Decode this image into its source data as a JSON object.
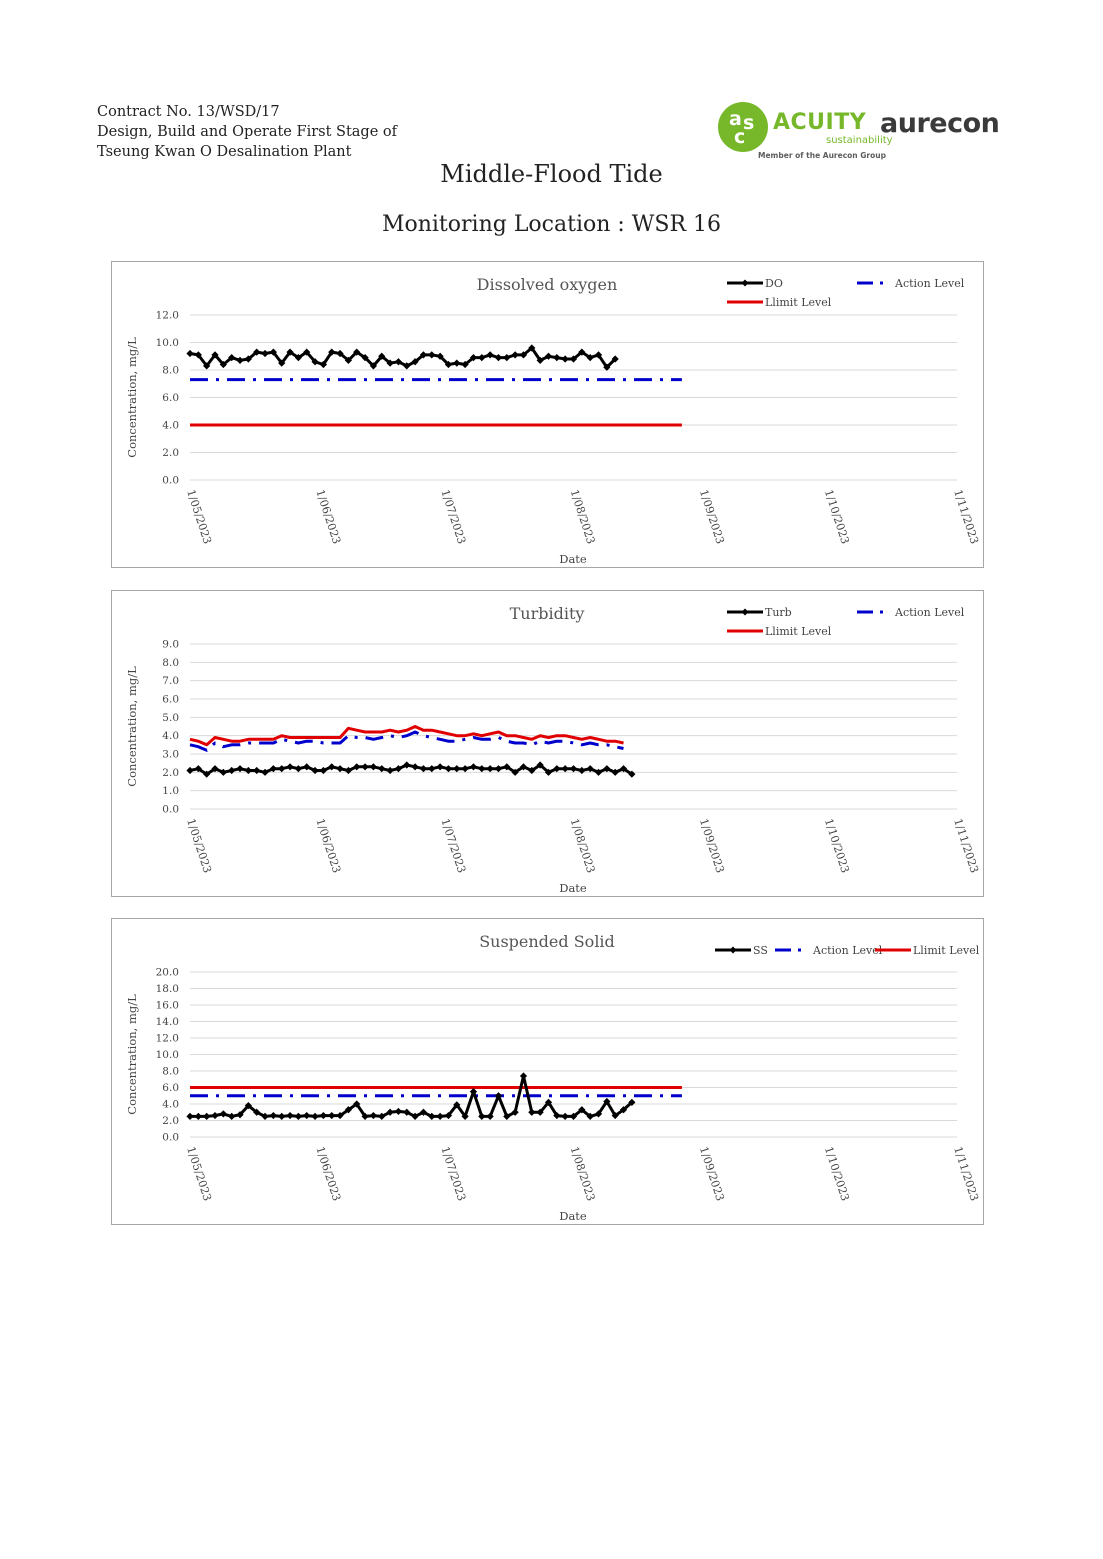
{
  "header": {
    "contract_line1": "Contract No. 13/WSD/17",
    "contract_line2": "Design, Build and Operate First Stage of",
    "contract_line3": "Tseung Kwan O Desalination Plant"
  },
  "logos": {
    "acuity_name": "ACUITY",
    "acuity_sub": "sustainability",
    "acuity_member": "Member of the Aurecon Group",
    "aurecon_name": "aurecon",
    "acuity_color": "#76b82a",
    "aurecon_color": "#3a3a3a"
  },
  "page": {
    "title": "Middle-Flood Tide",
    "subtitle": "Monitoring Location : WSR 16"
  },
  "chart_data": [
    {
      "type": "line",
      "title": "Dissolved oxygen",
      "xlabel": "Date",
      "ylabel": "Concentration, mg/L",
      "ylim": [
        0,
        12
      ],
      "ytick_step": 2,
      "xlim": [
        "2023-05-01",
        "2023-11-01"
      ],
      "xticks": [
        "1/05/2023",
        "1/06/2023",
        "1/07/2023",
        "1/08/2023",
        "1/09/2023",
        "1/10/2023",
        "1/11/2023"
      ],
      "grid": true,
      "legend_position": "top-right",
      "series": [
        {
          "name": "DO",
          "color": "#000000",
          "style": "solid-marker",
          "x_start": "2023-05-01",
          "x_step_days": 2,
          "values": [
            9.2,
            9.1,
            8.3,
            9.1,
            8.4,
            8.9,
            8.7,
            8.8,
            9.3,
            9.2,
            9.3,
            8.5,
            9.3,
            8.9,
            9.3,
            8.6,
            8.4,
            9.3,
            9.2,
            8.7,
            9.3,
            8.9,
            8.3,
            9.0,
            8.5,
            8.6,
            8.3,
            8.6,
            9.1,
            9.1,
            9.0,
            8.4,
            8.5,
            8.4,
            8.9,
            8.9,
            9.1,
            8.9,
            8.9,
            9.1,
            9.1,
            9.6,
            8.7,
            9.0,
            8.9,
            8.8,
            8.8,
            9.3,
            8.9,
            9.1,
            8.2,
            8.8
          ]
        },
        {
          "name": "Action Level",
          "color": "#0000cc",
          "style": "dash-dot",
          "x": [
            "2023-05-01",
            "2023-08-27"
          ],
          "values": [
            7.3,
            7.3
          ]
        },
        {
          "name": "Llimit Level",
          "color": "#e00000",
          "style": "solid",
          "x": [
            "2023-05-01",
            "2023-08-27"
          ],
          "values": [
            4.0,
            4.0
          ]
        }
      ]
    },
    {
      "type": "line",
      "title": "Turbidity",
      "xlabel": "Date",
      "ylabel": "Concentration, mg/L",
      "ylim": [
        0,
        9
      ],
      "ytick_step": 1,
      "xlim": [
        "2023-05-01",
        "2023-11-01"
      ],
      "xticks": [
        "1/05/2023",
        "1/06/2023",
        "1/07/2023",
        "1/08/2023",
        "1/09/2023",
        "1/10/2023",
        "1/11/2023"
      ],
      "grid": true,
      "legend_position": "top-right",
      "series": [
        {
          "name": "Turb",
          "color": "#000000",
          "style": "solid-marker",
          "x_start": "2023-05-01",
          "x_step_days": 2,
          "values": [
            2.1,
            2.2,
            1.9,
            2.2,
            2.0,
            2.1,
            2.2,
            2.1,
            2.1,
            2.0,
            2.2,
            2.2,
            2.3,
            2.2,
            2.3,
            2.1,
            2.1,
            2.3,
            2.2,
            2.1,
            2.3,
            2.3,
            2.3,
            2.2,
            2.1,
            2.2,
            2.4,
            2.3,
            2.2,
            2.2,
            2.3,
            2.2,
            2.2,
            2.2,
            2.3,
            2.2,
            2.2,
            2.2,
            2.3,
            2.0,
            2.3,
            2.1,
            2.4,
            2.0,
            2.2,
            2.2,
            2.2,
            2.1,
            2.2,
            2.0,
            2.2,
            2.0,
            2.2,
            1.9
          ]
        },
        {
          "name": "Action Level",
          "color": "#0000cc",
          "style": "dash-dot",
          "x_start": "2023-05-01",
          "x_step_days": 2,
          "values": [
            3.5,
            3.4,
            3.2,
            3.6,
            3.4,
            3.5,
            3.5,
            3.6,
            3.6,
            3.6,
            3.6,
            3.8,
            3.7,
            3.6,
            3.7,
            3.7,
            3.6,
            3.6,
            3.6,
            4.0,
            3.9,
            3.9,
            3.8,
            3.9,
            4.0,
            3.9,
            4.0,
            4.2,
            4.0,
            3.9,
            3.8,
            3.7,
            3.7,
            3.8,
            3.9,
            3.8,
            3.8,
            3.9,
            3.7,
            3.6,
            3.6,
            3.5,
            3.7,
            3.6,
            3.7,
            3.7,
            3.6,
            3.5,
            3.6,
            3.5,
            3.5,
            3.4,
            3.3
          ]
        },
        {
          "name": "Llimit Level",
          "color": "#e00000",
          "style": "solid",
          "x_start": "2023-05-01",
          "x_step_days": 2,
          "values": [
            3.8,
            3.7,
            3.5,
            3.9,
            3.8,
            3.7,
            3.7,
            3.8,
            3.8,
            3.8,
            3.8,
            4.0,
            3.9,
            3.9,
            3.9,
            3.9,
            3.9,
            3.9,
            3.9,
            4.4,
            4.3,
            4.2,
            4.2,
            4.2,
            4.3,
            4.2,
            4.3,
            4.5,
            4.3,
            4.3,
            4.2,
            4.1,
            4.0,
            4.0,
            4.1,
            4.0,
            4.1,
            4.2,
            4.0,
            4.0,
            3.9,
            3.8,
            4.0,
            3.9,
            4.0,
            4.0,
            3.9,
            3.8,
            3.9,
            3.8,
            3.7,
            3.7,
            3.6
          ]
        }
      ]
    },
    {
      "type": "line",
      "title": "Suspended Solid",
      "xlabel": "Date",
      "ylabel": "Concentration, mg/L",
      "ylim": [
        0,
        20
      ],
      "ytick_step": 2,
      "xlim": [
        "2023-05-01",
        "2023-11-01"
      ],
      "xticks": [
        "1/05/2023",
        "1/06/2023",
        "1/07/2023",
        "1/08/2023",
        "1/09/2023",
        "1/10/2023",
        "1/11/2023"
      ],
      "grid": true,
      "legend_position": "top-right",
      "series": [
        {
          "name": "SS",
          "color": "#000000",
          "style": "solid-marker",
          "x_start": "2023-05-01",
          "x_step_days": 2,
          "values": [
            2.5,
            2.5,
            2.5,
            2.6,
            2.8,
            2.5,
            2.7,
            3.8,
            3.0,
            2.5,
            2.6,
            2.5,
            2.6,
            2.5,
            2.6,
            2.5,
            2.6,
            2.6,
            2.6,
            3.3,
            4.0,
            2.5,
            2.6,
            2.5,
            3.0,
            3.1,
            3.0,
            2.5,
            3.0,
            2.5,
            2.5,
            2.6,
            3.9,
            2.5,
            5.5,
            2.5,
            2.5,
            5.0,
            2.5,
            3.0,
            7.4,
            3.0,
            3.0,
            4.2,
            2.6,
            2.5,
            2.5,
            3.3,
            2.5,
            2.8,
            4.3,
            2.6,
            3.3,
            4.2
          ]
        },
        {
          "name": "Action Level",
          "color": "#0000cc",
          "style": "dash-dot",
          "x": [
            "2023-05-01",
            "2023-08-27"
          ],
          "values": [
            5.0,
            5.0
          ]
        },
        {
          "name": "Llimit Level",
          "color": "#e00000",
          "style": "solid",
          "x": [
            "2023-05-01",
            "2023-08-27"
          ],
          "values": [
            6.0,
            6.0
          ]
        }
      ]
    }
  ]
}
